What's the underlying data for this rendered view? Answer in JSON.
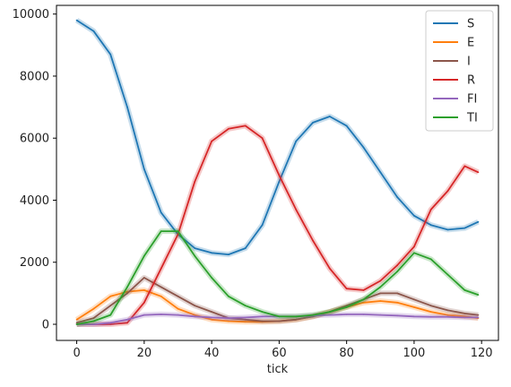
{
  "chart_data": {
    "type": "line",
    "title": "",
    "xlabel": "tick",
    "ylabel": "",
    "xlim": [
      -6,
      125
    ],
    "ylim": [
      -520,
      10280
    ],
    "xticks": [
      0,
      20,
      40,
      60,
      80,
      100,
      120
    ],
    "yticks": [
      0,
      2000,
      4000,
      6000,
      8000,
      10000
    ],
    "grid": false,
    "legend_position": "top-right",
    "x": [
      0,
      5,
      10,
      15,
      20,
      25,
      30,
      35,
      40,
      45,
      50,
      55,
      60,
      65,
      70,
      75,
      80,
      85,
      90,
      95,
      100,
      105,
      110,
      115,
      119
    ],
    "series": [
      {
        "name": "S",
        "color": "#1f77b4",
        "values": [
          9800,
          9450,
          8700,
          7000,
          5000,
          3600,
          2900,
          2450,
          2300,
          2250,
          2450,
          3200,
          4600,
          5900,
          6500,
          6700,
          6400,
          5700,
          4900,
          4100,
          3500,
          3200,
          3050,
          3100,
          3300
        ]
      },
      {
        "name": "E",
        "color": "#ff7f0e",
        "values": [
          150,
          500,
          900,
          1050,
          1100,
          900,
          500,
          300,
          150,
          100,
          80,
          80,
          100,
          150,
          250,
          400,
          550,
          700,
          750,
          700,
          550,
          400,
          300,
          250,
          200
        ]
      },
      {
        "name": "I",
        "color": "#8c564b",
        "values": [
          50,
          200,
          600,
          1000,
          1500,
          1200,
          900,
          600,
          400,
          200,
          150,
          100,
          100,
          150,
          250,
          400,
          600,
          800,
          1000,
          1000,
          800,
          600,
          450,
          350,
          300
        ]
      },
      {
        "name": "R",
        "color": "#d62728",
        "values": [
          0,
          0,
          0,
          50,
          700,
          1800,
          2900,
          4600,
          5900,
          6300,
          6400,
          6000,
          4800,
          3700,
          2700,
          1800,
          1150,
          1100,
          1400,
          1900,
          2500,
          3700,
          4300,
          5100,
          4900
        ]
      },
      {
        "name": "FI",
        "color": "#9467bd",
        "values": [
          0,
          0,
          50,
          150,
          300,
          320,
          300,
          250,
          220,
          200,
          220,
          250,
          250,
          250,
          280,
          300,
          320,
          320,
          300,
          280,
          250,
          240,
          240,
          220,
          220
        ]
      },
      {
        "name": "TI",
        "color": "#2ca02c",
        "values": [
          0,
          100,
          300,
          1200,
          2200,
          3000,
          3000,
          2200,
          1500,
          900,
          600,
          400,
          250,
          250,
          300,
          400,
          550,
          800,
          1200,
          1700,
          2300,
          2100,
          1600,
          1100,
          950
        ]
      }
    ]
  }
}
